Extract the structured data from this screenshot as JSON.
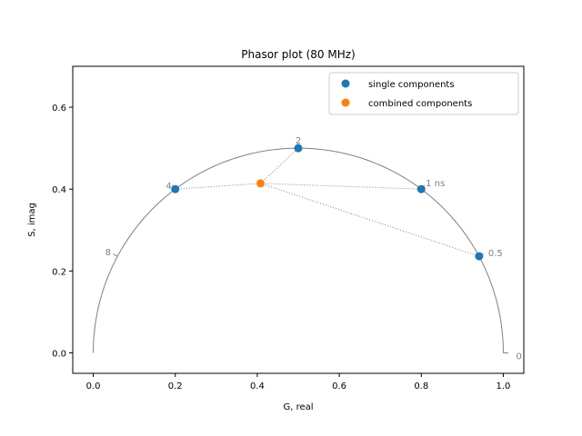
{
  "chart_data": {
    "type": "scatter",
    "title": "Phasor plot (80 MHz)",
    "xlabel": "G, real",
    "ylabel": "S, imag",
    "xlim": [
      -0.05,
      1.05
    ],
    "ylim": [
      -0.05,
      0.7
    ],
    "xticks": [
      "0.0",
      "0.2",
      "0.4",
      "0.6",
      "0.8",
      "1.0"
    ],
    "yticks": [
      "0.0",
      "0.2",
      "0.4",
      "0.6"
    ],
    "grid": false,
    "legend_position": "top-right",
    "colors": {
      "single": "#1f77b4",
      "combined": "#ff7f0e",
      "curve": "#808080"
    },
    "series": [
      {
        "name": "single components",
        "points": [
          {
            "x": 0.2,
            "y": 0.4
          },
          {
            "x": 0.5,
            "y": 0.5
          },
          {
            "x": 0.8,
            "y": 0.4
          },
          {
            "x": 0.941,
            "y": 0.236
          }
        ]
      },
      {
        "name": "combined components",
        "points": [
          {
            "x": 0.408,
            "y": 0.414
          }
        ]
      }
    ],
    "lifetime_labels": [
      {
        "text": "0",
        "x": 1.0,
        "y": 0.0
      },
      {
        "text": "0.5",
        "x": 0.941,
        "y": 0.236
      },
      {
        "text": "1 ns",
        "x": 0.8,
        "y": 0.4
      },
      {
        "text": "2",
        "x": 0.5,
        "y": 0.5
      },
      {
        "text": "4",
        "x": 0.2,
        "y": 0.4
      },
      {
        "text": "8",
        "x": 0.059,
        "y": 0.236
      }
    ]
  }
}
